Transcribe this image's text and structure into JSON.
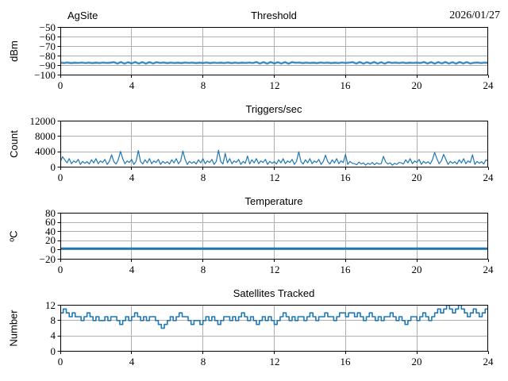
{
  "figure": {
    "background": "#ffffff",
    "line_color": "#1f77b4",
    "grid_color": "#b0b0b0",
    "axis_color": "#000000",
    "text_color": "#000000",
    "header": {
      "left": "AgSite",
      "center": "Threshold",
      "right": "2026/01/27"
    }
  },
  "chart_data": [
    {
      "type": "line",
      "name": "threshold",
      "title": "Threshold",
      "title_left": "AgSite",
      "title_right": "2026/01/27",
      "ylabel": "dBm",
      "xlim": [
        0,
        24
      ],
      "ylim": [
        -100,
        -50
      ],
      "xticks": [
        0,
        4,
        8,
        12,
        16,
        20,
        24
      ],
      "xtick_labels": [
        "0",
        "4",
        "8",
        "12",
        "16",
        "20",
        "24"
      ],
      "yticks": [
        -100,
        -90,
        -80,
        -70,
        -60,
        -50
      ],
      "ytick_labels": [
        "−100",
        "−90",
        "−80",
        "−70",
        "−60",
        "−50"
      ],
      "grid": true,
      "lw": 1.4,
      "halo": true,
      "y": [
        -87.0,
        -87.4,
        -86.9,
        -87.5,
        -87.1,
        -87.3,
        -86.9,
        -87.4,
        -87.0,
        -87.5,
        -87.1,
        -87.4,
        -86.9,
        -87.3,
        -87.1,
        -86.5,
        -87.9,
        -86.4,
        -88.0,
        -86.6,
        -87.8,
        -86.4,
        -87.9,
        -86.5,
        -88.0,
        -86.5,
        -87.8,
        -86.6,
        -87.3,
        -86.9,
        -87.5,
        -87.0,
        -87.4,
        -87.1,
        -87.5,
        -86.9,
        -87.3,
        -87.0,
        -87.5,
        -87.1,
        -87.4,
        -86.9,
        -87.5,
        -87.0,
        -87.3,
        -87.1,
        -87.4,
        -86.9,
        -87.5,
        -87.0,
        -87.4,
        -87.1,
        -87.3,
        -86.9,
        -87.4,
        -86.4,
        -87.9,
        -86.5,
        -88.0,
        -86.4,
        -87.8,
        -86.6,
        -87.9,
        -86.5,
        -88.0,
        -86.5,
        -87.2,
        -86.9,
        -87.5,
        -87.0,
        -87.4,
        -87.1,
        -87.5,
        -86.9,
        -87.3,
        -87.0,
        -87.5,
        -87.1,
        -87.4,
        -86.9,
        -87.3,
        -87.0,
        -86.5,
        -87.9,
        -86.4,
        -88.0,
        -86.6,
        -87.8,
        -86.4,
        -87.9,
        -86.6,
        -88.0,
        -86.5,
        -87.3,
        -87.0,
        -87.4,
        -86.9,
        -87.5,
        -87.1,
        -87.3,
        -87.0,
        -87.4,
        -86.4,
        -87.9,
        -86.5,
        -88.0,
        -86.5,
        -87.8,
        -86.4,
        -87.9,
        -86.6,
        -88.0,
        -86.4,
        -87.8,
        -86.5,
        -87.9,
        -87.2,
        -86.9,
        -87.4,
        -87.0,
        -87.3
      ]
    },
    {
      "type": "line",
      "name": "triggers-per-sec",
      "title": "Triggers/sec",
      "ylabel": "Count",
      "xlim": [
        0,
        24
      ],
      "ylim": [
        0,
        12000
      ],
      "xticks": [
        0,
        4,
        8,
        12,
        16,
        20,
        24
      ],
      "xtick_labels": [
        "0",
        "4",
        "8",
        "12",
        "16",
        "20",
        "24"
      ],
      "yticks": [
        0,
        4000,
        8000,
        12000
      ],
      "ytick_labels": [
        "0",
        "4000",
        "8000",
        "12000"
      ],
      "grid": true,
      "lw": 1.2,
      "halo": false,
      "y": [
        1400,
        2700,
        1900,
        1100,
        2200,
        900,
        1600,
        1200,
        2000,
        700,
        1500,
        1000,
        1400,
        800,
        1900,
        1100,
        2200,
        900,
        1600,
        1200,
        2000,
        700,
        1500,
        3200,
        1400,
        800,
        1900,
        4100,
        2200,
        900,
        1600,
        1200,
        2000,
        700,
        1500,
        4300,
        1400,
        800,
        1900,
        1100,
        2200,
        900,
        1600,
        1200,
        2000,
        700,
        1500,
        1000,
        1400,
        800,
        1900,
        1100,
        2200,
        900,
        1600,
        4200,
        2000,
        700,
        1500,
        1000,
        1400,
        800,
        1900,
        1100,
        2200,
        900,
        1600,
        1200,
        2000,
        700,
        1500,
        4400,
        1400,
        800,
        3600,
        1100,
        2200,
        900,
        1600,
        1200,
        2000,
        700,
        1500,
        1000,
        2900,
        800,
        1900,
        1100,
        2200,
        900,
        1600,
        1200,
        2000,
        700,
        1500,
        1000,
        1400,
        800,
        1900,
        1100,
        2200,
        900,
        1600,
        1200,
        2000,
        700,
        1500,
        4000,
        1400,
        800,
        1900,
        1100,
        2200,
        900,
        1600,
        1200,
        2000,
        700,
        1500,
        3100,
        1400,
        800,
        1900,
        1100,
        2200,
        900,
        1600,
        1200,
        3300,
        700,
        1500,
        1000,
        900,
        600,
        1300,
        800,
        1100,
        500,
        1000,
        700,
        1200,
        600,
        1100,
        800,
        900,
        2800,
        1300,
        800,
        1100,
        500,
        1000,
        700,
        1200,
        1100,
        800,
        1900,
        1100,
        2200,
        900,
        1600,
        1200,
        2000,
        700,
        1500,
        1000,
        1400,
        800,
        1900,
        3800,
        2200,
        900,
        1600,
        3300,
        2000,
        700,
        1500,
        1000,
        1400,
        800,
        1900,
        1100,
        2200,
        900,
        1600,
        1200,
        3200,
        700,
        1500,
        1000,
        1400,
        800,
        1900,
        1500
      ]
    },
    {
      "type": "line",
      "name": "temperature",
      "title": "Temperature",
      "ylabel": "ºC",
      "xlim": [
        0,
        24
      ],
      "ylim": [
        -20,
        80
      ],
      "xticks": [
        0,
        4,
        8,
        12,
        16,
        20,
        24
      ],
      "xtick_labels": [
        "0",
        "4",
        "8",
        "12",
        "16",
        "20",
        "24"
      ],
      "yticks": [
        -20,
        0,
        20,
        40,
        60,
        80
      ],
      "ytick_labels": [
        "−20",
        "0",
        "20",
        "40",
        "60",
        "80"
      ],
      "grid": true,
      "lw": 2.8,
      "halo": false,
      "y": [
        3,
        3
      ]
    },
    {
      "type": "line",
      "name": "satellites-tracked",
      "title": "Satellites Tracked",
      "ylabel": "Number",
      "xlim": [
        0,
        24
      ],
      "ylim": [
        0,
        12
      ],
      "xticks": [
        0,
        4,
        8,
        12,
        16,
        20,
        24
      ],
      "xtick_labels": [
        "0",
        "4",
        "8",
        "12",
        "16",
        "20",
        "24"
      ],
      "yticks": [
        0,
        4,
        8,
        12
      ],
      "ytick_labels": [
        "0",
        "4",
        "8",
        "12"
      ],
      "grid": true,
      "lw": 1.6,
      "halo": false,
      "step": true,
      "y": [
        10,
        11,
        10,
        9,
        10,
        9,
        9,
        8,
        9,
        10,
        9,
        8,
        9,
        8,
        8,
        9,
        8,
        9,
        9,
        8,
        7,
        8,
        9,
        8,
        9,
        10,
        9,
        8,
        9,
        8,
        9,
        9,
        8,
        7,
        6,
        7,
        8,
        9,
        8,
        9,
        10,
        9,
        9,
        8,
        7,
        8,
        8,
        7,
        8,
        9,
        8,
        9,
        8,
        7,
        8,
        9,
        9,
        8,
        9,
        8,
        9,
        10,
        9,
        8,
        9,
        8,
        7,
        8,
        9,
        8,
        9,
        8,
        7,
        8,
        9,
        10,
        9,
        8,
        9,
        8,
        9,
        9,
        8,
        9,
        10,
        9,
        8,
        9,
        9,
        10,
        9,
        9,
        8,
        9,
        10,
        10,
        9,
        10,
        10,
        9,
        10,
        9,
        8,
        9,
        10,
        9,
        8,
        9,
        8,
        9,
        9,
        10,
        9,
        8,
        9,
        8,
        7,
        8,
        9,
        9,
        8,
        9,
        10,
        9,
        8,
        9,
        10,
        11,
        10,
        11,
        12,
        11,
        10,
        11,
        12,
        11,
        10,
        9,
        10,
        11,
        10,
        9,
        10,
        11,
        10
      ]
    }
  ]
}
